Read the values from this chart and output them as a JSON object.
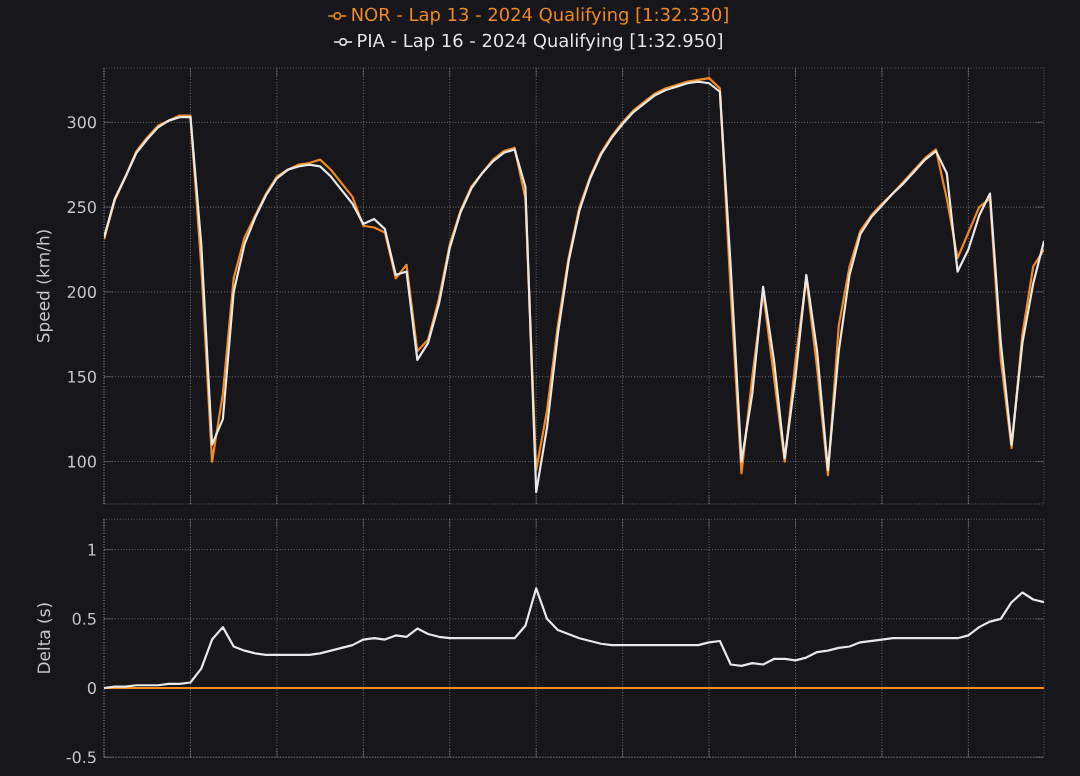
{
  "chart_data": [
    {
      "type": "line",
      "ylabel": "Speed (km/h)",
      "categories": [
        null,
        null,
        null,
        null,
        null,
        null,
        null,
        null,
        null,
        null,
        null,
        null,
        null,
        null,
        null,
        null,
        null,
        null,
        null,
        null,
        null,
        null,
        null,
        null,
        null,
        null,
        null,
        null,
        null,
        null,
        null,
        null,
        null,
        null,
        null,
        null,
        null,
        null,
        null,
        null,
        null,
        null,
        null,
        null,
        null,
        null,
        null,
        null,
        null,
        null,
        null,
        null,
        null,
        null,
        null,
        null,
        null,
        null,
        null,
        null,
        null,
        null,
        null,
        null,
        null,
        null,
        null,
        null,
        null,
        null,
        null,
        null,
        null,
        null,
        null,
        null,
        null,
        null,
        null,
        null,
        null,
        null,
        null,
        null,
        null,
        null,
        null,
        null
      ],
      "ylim": [
        75,
        332
      ],
      "yticks": [
        100,
        150,
        200,
        250,
        300
      ],
      "grid": true,
      "legend": "top",
      "tick_labels": "y",
      "series": [
        {
          "name": "NOR - Lap 13 - 2024 Qualifying [1:32.330]",
          "color": "#f28a1c",
          "values": [
            231,
            254,
            268,
            283,
            291,
            298,
            301,
            304,
            304,
            215,
            100,
            140,
            208,
            232,
            245,
            258,
            268,
            272,
            275,
            276,
            278,
            272,
            264,
            256,
            239,
            238,
            235,
            208,
            216,
            165,
            172,
            196,
            228,
            248,
            262,
            270,
            278,
            283,
            285,
            255,
            95,
            130,
            180,
            220,
            250,
            268,
            282,
            292,
            300,
            307,
            312,
            317,
            320,
            322,
            324,
            325,
            326,
            320,
            200,
            93,
            150,
            200,
            150,
            100,
            160,
            208,
            155,
            92,
            180,
            215,
            236,
            245,
            252,
            258,
            265,
            272,
            279,
            284,
            255,
            220,
            235,
            250,
            255,
            160,
            108,
            175,
            215,
            225
          ]
        },
        {
          "name": "PIA - Lap 16 - 2024 Qualifying [1:32.950]",
          "color": "#e8e8e8",
          "values": [
            232,
            255,
            268,
            282,
            290,
            297,
            301,
            303,
            303,
            228,
            110,
            125,
            200,
            228,
            244,
            257,
            267,
            272,
            274,
            275,
            274,
            268,
            260,
            252,
            240,
            243,
            237,
            210,
            212,
            160,
            170,
            193,
            226,
            247,
            261,
            270,
            277,
            282,
            284,
            262,
            82,
            120,
            175,
            218,
            248,
            267,
            281,
            291,
            299,
            306,
            311,
            316,
            319,
            321,
            323,
            324,
            323,
            318,
            215,
            100,
            140,
            203,
            160,
            102,
            150,
            210,
            165,
            95,
            165,
            210,
            234,
            244,
            251,
            258,
            264,
            271,
            278,
            283,
            270,
            212,
            225,
            245,
            258,
            170,
            110,
            170,
            205,
            230
          ]
        }
      ]
    },
    {
      "type": "line",
      "ylabel": "Delta (s)",
      "categories": [
        null,
        null,
        null,
        null,
        null,
        null,
        null,
        null,
        null,
        null,
        null,
        null,
        null,
        null,
        null,
        null,
        null,
        null,
        null,
        null,
        null,
        null,
        null,
        null,
        null,
        null,
        null,
        null,
        null,
        null,
        null,
        null,
        null,
        null,
        null,
        null,
        null,
        null,
        null,
        null,
        null,
        null,
        null,
        null,
        null,
        null,
        null,
        null,
        null,
        null,
        null,
        null,
        null,
        null,
        null,
        null,
        null,
        null,
        null,
        null,
        null,
        null,
        null,
        null,
        null,
        null,
        null,
        null,
        null,
        null,
        null,
        null,
        null,
        null,
        null,
        null,
        null,
        null,
        null,
        null,
        null,
        null,
        null,
        null,
        null,
        null,
        null,
        null
      ],
      "ylim": [
        -0.5,
        1.22
      ],
      "yticks": [
        -0.5,
        0,
        0.5,
        1
      ],
      "grid": true,
      "tick_labels": "y",
      "series": [
        {
          "color": "#f28a1c",
          "values": [
            0,
            0,
            0,
            0,
            0,
            0,
            0,
            0,
            0,
            0,
            0,
            0,
            0,
            0,
            0,
            0,
            0,
            0,
            0,
            0,
            0,
            0,
            0,
            0,
            0,
            0,
            0,
            0,
            0,
            0,
            0,
            0,
            0,
            0,
            0,
            0,
            0,
            0,
            0,
            0,
            0,
            0,
            0,
            0,
            0,
            0,
            0,
            0,
            0,
            0,
            0,
            0,
            0,
            0,
            0,
            0,
            0,
            0,
            0,
            0,
            0,
            0,
            0,
            0,
            0,
            0,
            0,
            0,
            0,
            0,
            0,
            0,
            0,
            0,
            0,
            0,
            0,
            0,
            0,
            0,
            0,
            0,
            0,
            0,
            0,
            0,
            0,
            0
          ]
        },
        {
          "color": "#e8e8e8",
          "values": [
            0,
            0.01,
            0.01,
            0.02,
            0.02,
            0.02,
            0.03,
            0.03,
            0.04,
            0.14,
            0.35,
            0.44,
            0.3,
            0.27,
            0.25,
            0.24,
            0.24,
            0.24,
            0.24,
            0.24,
            0.25,
            0.27,
            0.29,
            0.31,
            0.35,
            0.36,
            0.35,
            0.38,
            0.37,
            0.43,
            0.39,
            0.37,
            0.36,
            0.36,
            0.36,
            0.36,
            0.36,
            0.36,
            0.36,
            0.45,
            0.72,
            0.5,
            0.42,
            0.39,
            0.36,
            0.34,
            0.32,
            0.31,
            0.31,
            0.31,
            0.31,
            0.31,
            0.31,
            0.31,
            0.31,
            0.31,
            0.33,
            0.34,
            0.17,
            0.16,
            0.18,
            0.17,
            0.21,
            0.21,
            0.2,
            0.22,
            0.26,
            0.27,
            0.29,
            0.3,
            0.33,
            0.34,
            0.35,
            0.36,
            0.36,
            0.36,
            0.36,
            0.36,
            0.36,
            0.36,
            0.38,
            0.44,
            0.48,
            0.5,
            0.62,
            0.69,
            0.64,
            0.62
          ]
        }
      ]
    }
  ]
}
